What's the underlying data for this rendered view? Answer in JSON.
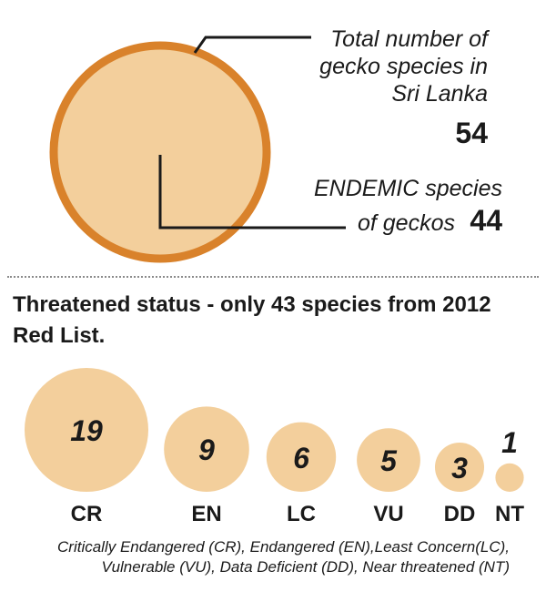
{
  "summary": {
    "total_label": [
      "Total number of",
      "gecko species in",
      "Sri Lanka"
    ],
    "total_value": "54",
    "endemic_label": [
      "ENDEMIC species",
      "of geckos"
    ],
    "endemic_value": "44"
  },
  "chart_data": {
    "type": "bubble",
    "title": "Threatened status - only 43 species from 2012 Red List.",
    "categories": [
      "CR",
      "EN",
      "LC",
      "VU",
      "DD",
      "NT"
    ],
    "values": [
      19,
      9,
      6,
      5,
      3,
      1
    ],
    "note": "Critically Endangered (CR), Endangered (EN),Least Concern(LC), Vulnerable (VU), Data Deficient (DD), Near threatened (NT)"
  },
  "colors": {
    "bubble_fill": "#f3cf9c",
    "ring_stroke": "#d9822b",
    "text": "#1a1a1a"
  }
}
